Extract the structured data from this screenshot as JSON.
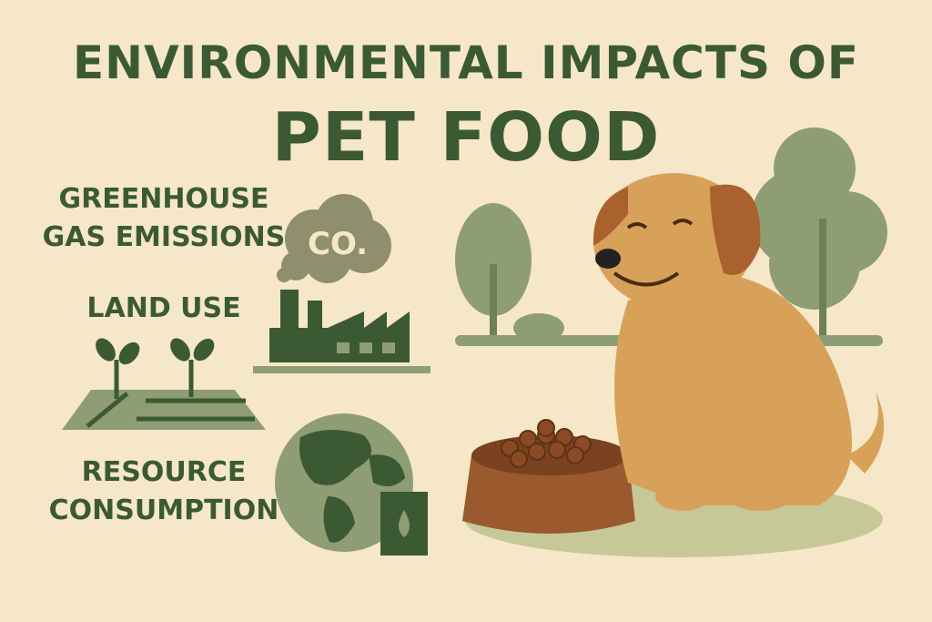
{
  "title": {
    "line1": "ENVIRONMENTAL IMPACTS OF",
    "line2": "PET FOOD"
  },
  "sections": [
    {
      "label_line1": "GREENHOUSE",
      "label_line2": "GAS EMISSIONS",
      "icon": "factory-smoke-icon"
    },
    {
      "label_line1": "LAND USE",
      "label_line2": "",
      "icon": "farmland-sprouts-icon"
    },
    {
      "label_line1": "RESOURCE",
      "label_line2": "CONSUMPTION",
      "icon": "globe-oil-can-icon"
    }
  ],
  "smoke_text": "CO.",
  "colors": {
    "background": "#f6e7c9",
    "dark_green": "#3b5a34",
    "sage": "#8f9d75",
    "dog": "#d8a159",
    "bowl": "#9a5a2d"
  }
}
